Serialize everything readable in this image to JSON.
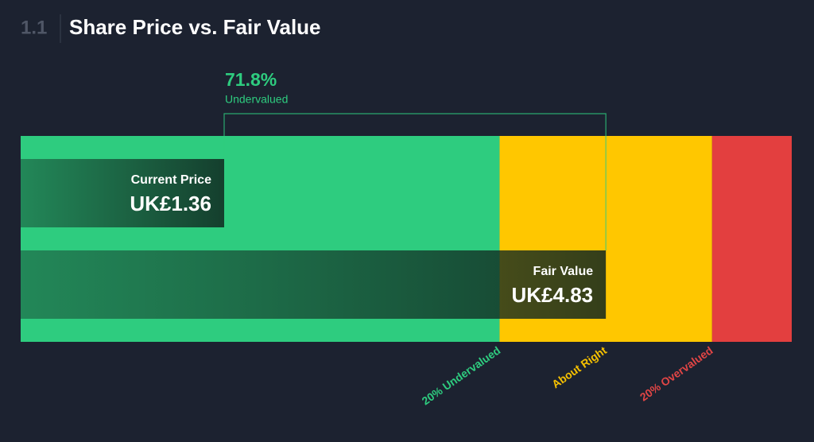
{
  "chart_data": {
    "type": "valuation",
    "section": "1.1",
    "title": "Share Price vs. Fair Value",
    "categories": [
      "Current Price",
      "Fair Value"
    ],
    "values": [
      1.36,
      4.83
    ],
    "value_labels": [
      "UK£1.36",
      "UK£4.83"
    ],
    "difference": {
      "value": 71.8,
      "label": "71.8%",
      "text": "Undervalued",
      "color": "#2ecc7f"
    },
    "zones": [
      {
        "name": "20% Undervalued",
        "to": 3.864,
        "color": "#2ecc7f"
      },
      {
        "name": "About Right",
        "to": 5.796,
        "color": "#ffc700"
      },
      {
        "name": "20% Overvalued",
        "to": 6.52,
        "color": "#e33f3f"
      }
    ],
    "zone_label_colors": [
      "#2ecc7f",
      "#f5c000",
      "#e04545"
    ],
    "xlim": [
      -0.49,
      6.52
    ]
  }
}
